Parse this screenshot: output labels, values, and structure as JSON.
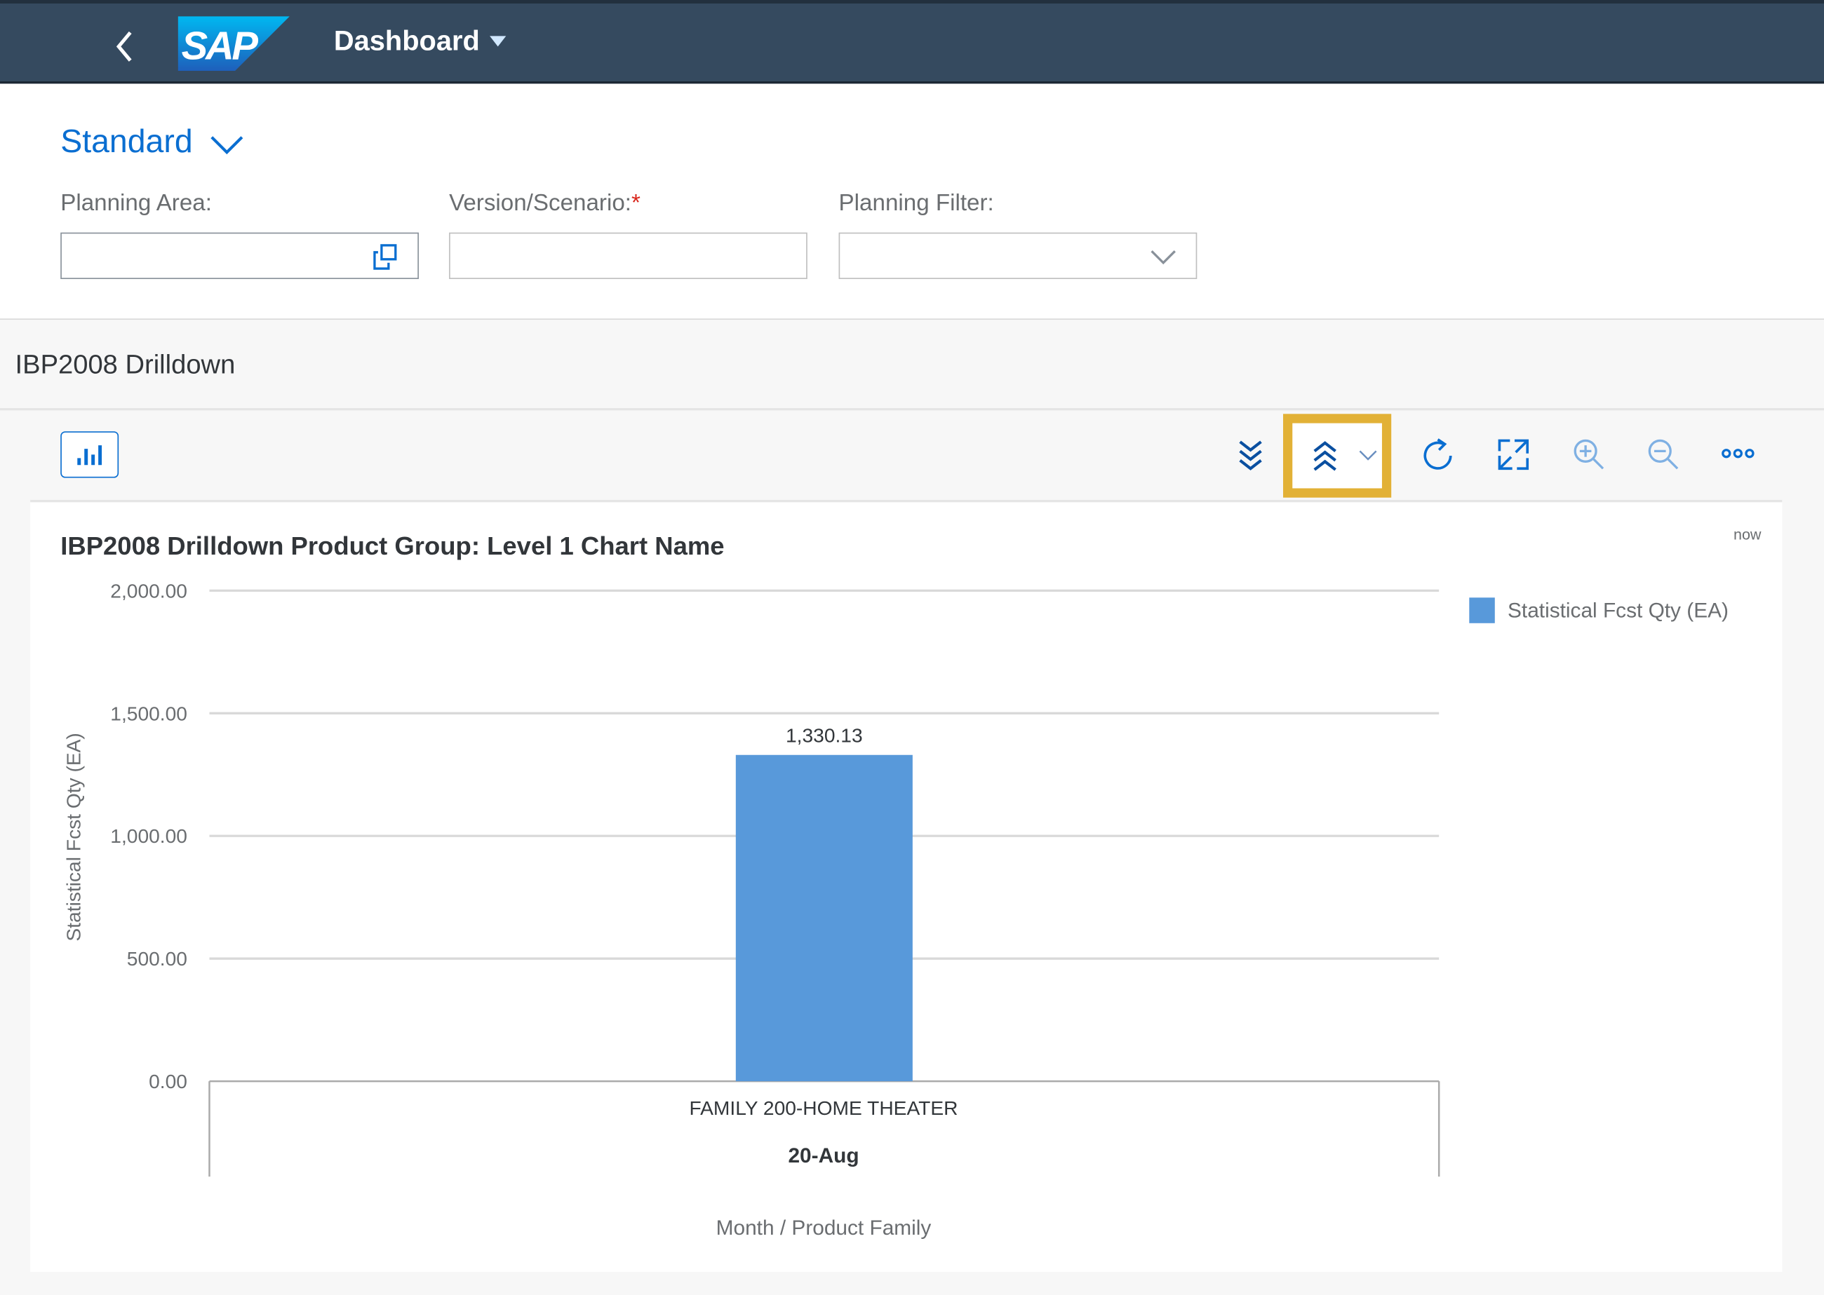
{
  "header": {
    "title": "Dashboard",
    "logo_text": "SAP",
    "back_icon": "chevron-left-icon"
  },
  "filters": {
    "variant": "Standard",
    "fields": [
      {
        "label": "Planning Area:",
        "value": "",
        "required": false,
        "icon": "value-help-icon"
      },
      {
        "label": "Version/Scenario:",
        "value": "",
        "required": true,
        "required_mark": "*"
      },
      {
        "label": "Planning Filter:",
        "value": "",
        "required": false,
        "icon": "chevron-down-icon"
      }
    ]
  },
  "section": {
    "title": "IBP2008 Drilldown"
  },
  "toolbar": {
    "icons": [
      "chart-type-icon",
      "drill-down-icon",
      "drill-up-icon",
      "refresh-icon",
      "fullscreen-icon",
      "zoom-in-icon",
      "zoom-out-icon",
      "more-icon"
    ],
    "highlight_color": "#e2b136"
  },
  "card": {
    "timestamp": "now"
  },
  "colors": {
    "header_bg": "#354a5f",
    "accent": "#0a6ed1",
    "bar": "#5899da"
  },
  "chart_data": {
    "type": "bar",
    "title": "IBP2008 Drilldown Product Group: Level 1 Chart Name",
    "categories": [
      "FAMILY 200-HOME THEATER"
    ],
    "category_group": "20-Aug",
    "series": [
      {
        "name": "Statistical Fcst Qty (EA)",
        "values": [
          1330.13
        ]
      }
    ],
    "data_labels": [
      "1,330.13"
    ],
    "xlabel": "Month / Product Family",
    "ylabel": "Statistical Fcst Qty (EA)",
    "ylim": [
      0,
      2000
    ],
    "yticks": [
      "0.00",
      "500.00",
      "1,000.00",
      "1,500.00",
      "2,000.00"
    ],
    "grid": true,
    "legend": "right"
  }
}
